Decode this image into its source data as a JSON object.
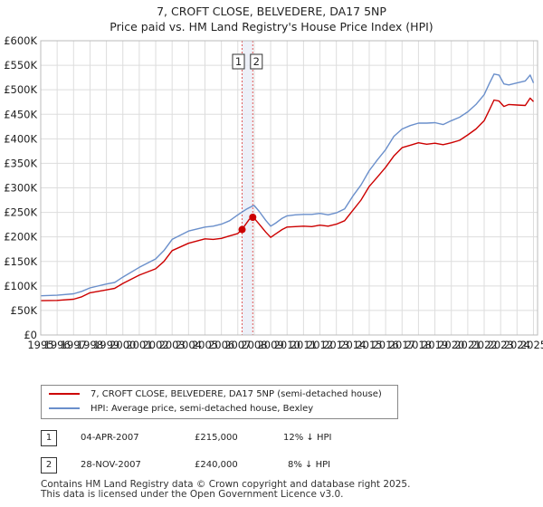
{
  "title": {
    "line1": "7, CROFT CLOSE, BELVEDERE, DA17 5NP",
    "line2": "Price paid vs. HM Land Registry's House Price Index (HPI)"
  },
  "colors": {
    "property": "#cc0000",
    "hpi": "#6a8fcb",
    "grid": "#dddddd",
    "marker_band": "#e8ecf6"
  },
  "chart_data": {
    "type": "line",
    "title": "7, CROFT CLOSE, BELVEDERE, DA17 5NP — Price paid vs. HM Land Registry's House Price Index (HPI)",
    "xlabel": "",
    "ylabel": "",
    "xlim": [
      1995,
      2025.25
    ],
    "ylim": [
      0,
      600000
    ],
    "grid": true,
    "x_ticks": [
      1995,
      1996,
      1997,
      1998,
      1999,
      2000,
      2001,
      2002,
      2003,
      2004,
      2005,
      2006,
      2007,
      2008,
      2009,
      2010,
      2011,
      2012,
      2013,
      2014,
      2015,
      2016,
      2017,
      2018,
      2019,
      2020,
      2021,
      2022,
      2023,
      2024,
      2025
    ],
    "y_ticks": [
      0,
      50000,
      100000,
      150000,
      200000,
      250000,
      300000,
      350000,
      400000,
      450000,
      500000,
      550000,
      600000
    ],
    "y_tick_labels": [
      "£0",
      "£50K",
      "£100K",
      "£150K",
      "£200K",
      "£250K",
      "£300K",
      "£350K",
      "£400K",
      "£450K",
      "£500K",
      "£550K",
      "£600K"
    ],
    "series": [
      {
        "name": "7, CROFT CLOSE, BELVEDERE, DA17 5NP (semi-detached house)",
        "color": "#cc0000",
        "x": [
          1995,
          1996,
          1997,
          1997.5,
          1998,
          1999,
          1999.5,
          2000,
          2001,
          2002,
          2002.5,
          2003,
          2004,
          2005,
          2005.5,
          2006,
          2006.5,
          2007,
          2007.26,
          2007.4,
          2007.7,
          2007.91,
          2008,
          2008.3,
          2008.7,
          2009,
          2009.3,
          2009.7,
          2010,
          2010.5,
          2011,
          2011.5,
          2012,
          2012.5,
          2013,
          2013.5,
          2014,
          2014.5,
          2015,
          2015.5,
          2016,
          2016.5,
          2017,
          2017.5,
          2018,
          2018.5,
          2019,
          2019.5,
          2020,
          2020.5,
          2021,
          2021.5,
          2022,
          2022.3,
          2022.6,
          2022.9,
          2023.2,
          2023.5,
          2024,
          2024.5,
          2024.8,
          2025
        ],
        "y": [
          70000,
          70500,
          73000,
          78000,
          86000,
          92000,
          95000,
          105000,
          122000,
          135000,
          150000,
          172000,
          187000,
          196000,
          195000,
          197000,
          202000,
          207000,
          215000,
          222000,
          236000,
          240000,
          238000,
          226000,
          210000,
          199000,
          206000,
          215000,
          220000,
          221000,
          222000,
          221000,
          224000,
          222000,
          226000,
          233000,
          254000,
          275000,
          303000,
          322000,
          342000,
          365000,
          382000,
          387000,
          392000,
          389000,
          391000,
          388000,
          392000,
          397000,
          408000,
          420000,
          437000,
          458000,
          479000,
          477000,
          466000,
          470000,
          469000,
          468000,
          483000,
          476000
        ]
      },
      {
        "name": "HPI: Average price, semi-detached house, Bexley",
        "color": "#6a8fcb",
        "x": [
          1995,
          1996,
          1997,
          1997.5,
          1998,
          1999,
          1999.5,
          2000,
          2001,
          2002,
          2002.5,
          2003,
          2004,
          2005,
          2005.5,
          2006,
          2006.5,
          2007,
          2007.5,
          2007.9,
          2008,
          2008.3,
          2008.7,
          2009,
          2009.3,
          2009.7,
          2010,
          2010.5,
          2011,
          2011.5,
          2012,
          2012.5,
          2013,
          2013.5,
          2014,
          2014.5,
          2015,
          2015.5,
          2016,
          2016.5,
          2017,
          2017.5,
          2018,
          2018.5,
          2019,
          2019.5,
          2020,
          2020.5,
          2021,
          2021.5,
          2022,
          2022.3,
          2022.6,
          2022.9,
          2023.2,
          2023.5,
          2024,
          2024.5,
          2024.8,
          2025
        ],
        "y": [
          80000,
          81000,
          84000,
          89000,
          96000,
          104000,
          107000,
          118000,
          138000,
          155000,
          172000,
          195000,
          212000,
          220000,
          222000,
          226000,
          233000,
          245000,
          256000,
          263000,
          264000,
          252000,
          234000,
          222000,
          228000,
          238000,
          243000,
          245000,
          246000,
          246000,
          248000,
          245000,
          249000,
          257000,
          283000,
          306000,
          335000,
          357000,
          378000,
          405000,
          420000,
          427000,
          432000,
          432000,
          433000,
          429000,
          437000,
          444000,
          455000,
          470000,
          490000,
          512000,
          532000,
          530000,
          512000,
          510000,
          514000,
          518000,
          530000,
          514000
        ]
      }
    ],
    "annotations": [
      {
        "label": "1",
        "x": 2007.26,
        "y": 215000
      },
      {
        "label": "2",
        "x": 2007.91,
        "y": 240000
      }
    ]
  },
  "legend": {
    "property_label": "7, CROFT CLOSE, BELVEDERE, DA17 5NP (semi-detached house)",
    "hpi_label": "HPI: Average price, semi-detached house, Bexley"
  },
  "transactions": [
    {
      "num": "1",
      "date": "04-APR-2007",
      "price": "£215,000",
      "delta": "12% ↓ HPI"
    },
    {
      "num": "2",
      "date": "28-NOV-2007",
      "price": "£240,000",
      "delta": "8% ↓ HPI"
    }
  ],
  "footer": {
    "line1": "Contains HM Land Registry data © Crown copyright and database right 2025.",
    "line2": "This data is licensed under the Open Government Licence v3.0."
  }
}
